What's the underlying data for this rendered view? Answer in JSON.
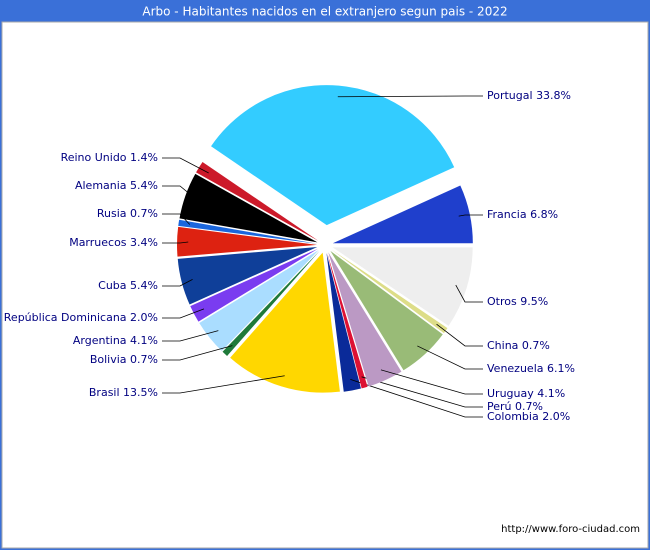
{
  "chart_data": {
    "type": "pie",
    "title": "Arbo - Habitantes nacidos en el extranjero segun pais - 2022",
    "categories": [
      "Francia",
      "Portugal",
      "Reino Unido",
      "Alemania",
      "Rusia",
      "Marruecos",
      "Cuba",
      "República Dominicana",
      "Argentina",
      "Bolivia",
      "Brasil",
      "Colombia",
      "Perú",
      "Uruguay",
      "Venezuela",
      "China",
      "Otros"
    ],
    "values": [
      6.8,
      33.8,
      1.4,
      5.4,
      0.7,
      3.4,
      5.4,
      2.0,
      4.1,
      0.7,
      13.5,
      2.0,
      0.7,
      4.1,
      6.1,
      0.7,
      9.5
    ],
    "value_labels": [
      "6.8%",
      "33.8%",
      "1.4%",
      "5.4%",
      "0.7%",
      "3.4%",
      "5.4%",
      "2.0%",
      "4.1%",
      "0.7%",
      "13.5%",
      "2.0%",
      "0.7%",
      "4.1%",
      "6.1%",
      "0.7%",
      "9.5%"
    ],
    "colors": [
      "#1f3fcc",
      "#33ccff",
      "#cc1a2a",
      "#000000",
      "#1a66dd",
      "#dd2211",
      "#0f3f99",
      "#7a3cf0",
      "#aaddff",
      "#1f7a3a",
      "#ffd700",
      "#0a2a99",
      "#dd1133",
      "#bb99c4",
      "#99bb77",
      "#dddd88",
      "#eeeeee"
    ],
    "source": "http://www.foro-ciudad.com"
  }
}
